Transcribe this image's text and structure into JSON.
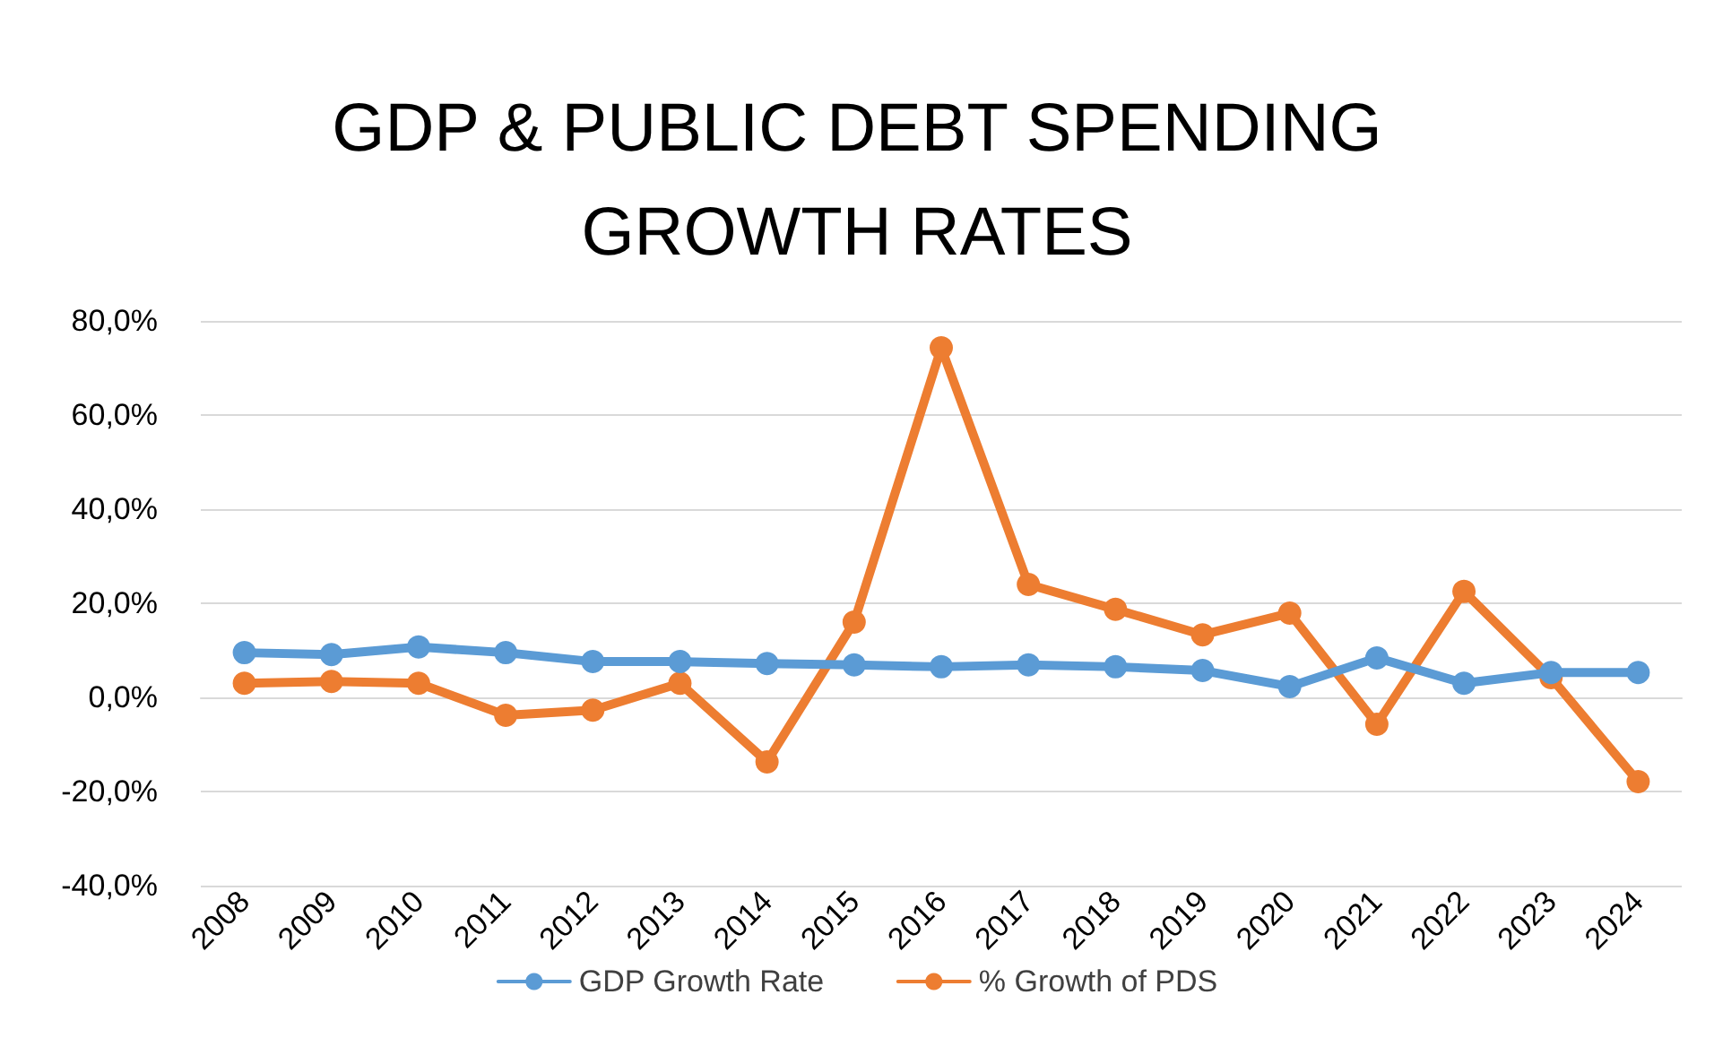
{
  "chart_data": {
    "type": "line",
    "title": "GDP & PUBLIC DEBT SPENDING\nGROWTH RATES",
    "categories": [
      "2008",
      "2009",
      "2010",
      "2011",
      "2012",
      "2013",
      "2014",
      "2015",
      "2016",
      "2017",
      "2018",
      "2019",
      "2020",
      "2021",
      "2022",
      "2023",
      "2024"
    ],
    "series": [
      {
        "name": "GDP Growth Rate",
        "color": "#5b9bd5",
        "values": [
          9.5,
          9.1,
          10.7,
          9.5,
          7.6,
          7.6,
          7.2,
          6.9,
          6.5,
          6.9,
          6.5,
          5.7,
          2.3,
          8.4,
          3.0,
          5.3,
          5.3
        ]
      },
      {
        "name": "% Growth of PDS",
        "color": "#ed7d31",
        "values": [
          3.0,
          3.4,
          3.0,
          -3.8,
          -2.7,
          3.0,
          -13.7,
          16.0,
          74.3,
          24.0,
          18.7,
          13.3,
          17.9,
          -5.7,
          22.5,
          4.2,
          -17.9
        ]
      }
    ],
    "ylim": [
      -40,
      80
    ],
    "yticks": [
      {
        "value": -40,
        "label": "-40,0%"
      },
      {
        "value": -20,
        "label": "-20,0%"
      },
      {
        "value": 0,
        "label": "0,0%"
      },
      {
        "value": 20,
        "label": "20,0%"
      },
      {
        "value": 40,
        "label": "40,0%"
      },
      {
        "value": 60,
        "label": "60,0%"
      },
      {
        "value": 80,
        "label": "80,0%"
      }
    ],
    "grid": "y",
    "legend": "bottom",
    "marker": "circle",
    "line_style": "solid"
  }
}
